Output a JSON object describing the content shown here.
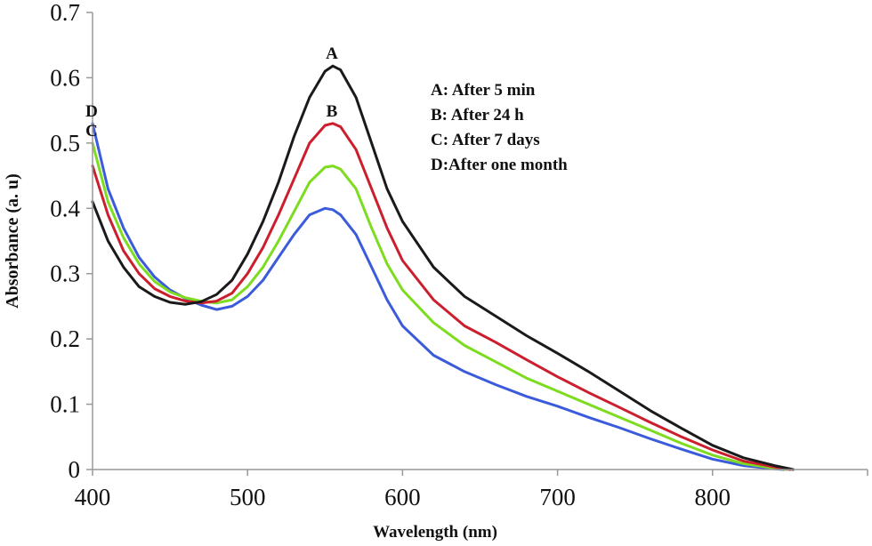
{
  "chart_data": {
    "type": "line",
    "xlabel": "Wavelength (nm)",
    "ylabel": "Absorbance (a. u)",
    "xlim": [
      400,
      900
    ],
    "ylim": [
      0,
      0.7
    ],
    "x_ticks": [
      "400",
      "500",
      "600",
      "700",
      "800"
    ],
    "y_ticks": [
      "0",
      "0.1",
      "0.2",
      "0.3",
      "0.4",
      "0.5",
      "0.6",
      "0.7"
    ],
    "grid": false,
    "legend": {
      "placement": "top-right",
      "entries": [
        "A: After 5 min",
        "B: After 24 h",
        "C: After 7 days",
        "D:After one month"
      ]
    },
    "series": [
      {
        "name": "A",
        "color": "#1a1a1a",
        "x": [
          400,
          410,
          420,
          430,
          440,
          450,
          460,
          470,
          480,
          490,
          500,
          510,
          520,
          530,
          540,
          550,
          555,
          560,
          570,
          580,
          590,
          600,
          620,
          640,
          660,
          680,
          700,
          720,
          740,
          760,
          780,
          800,
          820,
          840,
          852
        ],
        "y": [
          0.41,
          0.35,
          0.31,
          0.28,
          0.265,
          0.256,
          0.253,
          0.257,
          0.268,
          0.29,
          0.33,
          0.38,
          0.44,
          0.51,
          0.57,
          0.61,
          0.618,
          0.612,
          0.57,
          0.5,
          0.43,
          0.38,
          0.31,
          0.265,
          0.235,
          0.205,
          0.178,
          0.15,
          0.12,
          0.09,
          0.063,
          0.037,
          0.018,
          0.006,
          0.0
        ]
      },
      {
        "name": "B",
        "color": "#cc1f2e",
        "x": [
          400,
          410,
          420,
          430,
          440,
          450,
          460,
          470,
          480,
          490,
          500,
          510,
          520,
          530,
          540,
          550,
          555,
          560,
          570,
          580,
          590,
          600,
          620,
          640,
          660,
          680,
          700,
          720,
          740,
          760,
          780,
          800,
          820,
          840,
          850
        ],
        "y": [
          0.465,
          0.39,
          0.335,
          0.3,
          0.277,
          0.265,
          0.258,
          0.255,
          0.258,
          0.27,
          0.3,
          0.34,
          0.39,
          0.445,
          0.5,
          0.527,
          0.53,
          0.525,
          0.49,
          0.43,
          0.37,
          0.32,
          0.26,
          0.22,
          0.195,
          0.168,
          0.142,
          0.118,
          0.095,
          0.072,
          0.05,
          0.03,
          0.013,
          0.004,
          0.0
        ]
      },
      {
        "name": "C",
        "color": "#7ddc1f",
        "x": [
          400,
          410,
          420,
          430,
          440,
          450,
          460,
          470,
          480,
          490,
          500,
          510,
          520,
          530,
          540,
          550,
          555,
          560,
          570,
          580,
          590,
          600,
          620,
          640,
          660,
          680,
          700,
          720,
          740,
          760,
          780,
          800,
          820,
          840,
          848
        ],
        "y": [
          0.5,
          0.41,
          0.355,
          0.315,
          0.288,
          0.272,
          0.263,
          0.258,
          0.255,
          0.26,
          0.28,
          0.31,
          0.35,
          0.395,
          0.44,
          0.463,
          0.465,
          0.46,
          0.43,
          0.37,
          0.315,
          0.275,
          0.225,
          0.19,
          0.165,
          0.14,
          0.12,
          0.1,
          0.08,
          0.06,
          0.04,
          0.022,
          0.009,
          0.002,
          0.0
        ]
      },
      {
        "name": "D",
        "color": "#3b5bdb",
        "x": [
          400,
          410,
          420,
          430,
          440,
          450,
          460,
          470,
          480,
          490,
          500,
          510,
          520,
          530,
          540,
          550,
          555,
          560,
          570,
          580,
          590,
          600,
          620,
          640,
          660,
          680,
          700,
          720,
          740,
          760,
          780,
          800,
          820,
          840,
          846
        ],
        "y": [
          0.53,
          0.43,
          0.37,
          0.325,
          0.295,
          0.275,
          0.262,
          0.252,
          0.245,
          0.25,
          0.265,
          0.29,
          0.325,
          0.36,
          0.39,
          0.4,
          0.398,
          0.39,
          0.36,
          0.31,
          0.26,
          0.22,
          0.175,
          0.15,
          0.13,
          0.112,
          0.097,
          0.08,
          0.064,
          0.047,
          0.031,
          0.016,
          0.006,
          0.001,
          0.0
        ]
      }
    ]
  }
}
